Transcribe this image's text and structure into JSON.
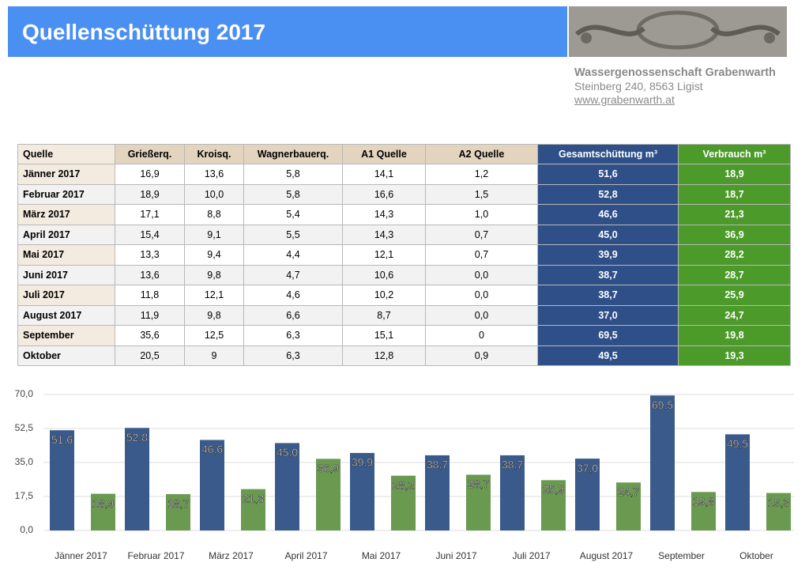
{
  "header": {
    "title": "Quellenschüttung 2017",
    "org": "Wassergenossenschaft Grabenwarth",
    "address": "Steinberg 240, 8563 Ligist",
    "website": "www.grabenwarth.at"
  },
  "table": {
    "columns": [
      "Quelle",
      "Grießerq.",
      "Kroisq.",
      "Wagnerbauerq.",
      "A1 Quelle",
      "A2 Quelle",
      "Gesamtschüttung m³",
      "Verbrauch m³"
    ],
    "rows": [
      [
        "Jänner 2017",
        "16,9",
        "13,6",
        "5,8",
        "14,1",
        "1,2",
        "51,6",
        "18,9"
      ],
      [
        "Februar 2017",
        "18,9",
        "10,0",
        "5,8",
        "16,6",
        "1,5",
        "52,8",
        "18,7"
      ],
      [
        "März 2017",
        "17,1",
        "8,8",
        "5,4",
        "14,3",
        "1,0",
        "46,6",
        "21,3"
      ],
      [
        "April 2017",
        "15,4",
        "9,1",
        "5,5",
        "14,3",
        "0,7",
        "45,0",
        "36,9"
      ],
      [
        "Mai 2017",
        "13,3",
        "9,4",
        "4,4",
        "12,1",
        "0,7",
        "39,9",
        "28,2"
      ],
      [
        "Juni 2017",
        "13,6",
        "9,8",
        "4,7",
        "10,6",
        "0,0",
        "38,7",
        "28,7"
      ],
      [
        "Juli 2017",
        "11,8",
        "12,1",
        "4,6",
        "10,2",
        "0,0",
        "38,7",
        "25,9"
      ],
      [
        "August 2017",
        "11,9",
        "9,8",
        "6,6",
        "8,7",
        "0,0",
        "37,0",
        "24,7"
      ],
      [
        "September",
        "35,6",
        "12,5",
        "6,3",
        "15,1",
        "0",
        "69,5",
        "19,8"
      ],
      [
        "Oktober",
        "20,5",
        "9",
        "6,3",
        "12,8",
        "0,9",
        "49,5",
        "19,3"
      ]
    ]
  },
  "chart_data": {
    "type": "bar",
    "categories": [
      "Jänner 2017",
      "Februar 2017",
      "März 2017",
      "April 2017",
      "Mai 2017",
      "Juni 2017",
      "Juli 2017",
      "August 2017",
      "September",
      "Oktober"
    ],
    "series": [
      {
        "color": "#3a5a8c",
        "values": [
          51.6,
          52.8,
          46.6,
          45.0,
          39.9,
          38.7,
          38.7,
          37.0,
          69.5,
          49.5
        ],
        "value_labels": [
          "51,6",
          "52,8",
          "46,6",
          "45,0",
          "39,9",
          "38,7",
          "38,7",
          "37,0",
          "69,5",
          "49,5"
        ]
      },
      {
        "color": "#6a9a50",
        "values": [
          18.9,
          18.7,
          21.3,
          36.9,
          28.2,
          28.7,
          25.9,
          24.7,
          19.8,
          19.3
        ],
        "value_labels": [
          "18,9",
          "18,7",
          "21,3",
          "36,9",
          "28,2",
          "28,7",
          "25,9",
          "24,7",
          "19,8",
          "19,3"
        ]
      }
    ],
    "ylim": [
      0,
      70
    ],
    "yticks": [
      {
        "value": 0,
        "label": "0,0"
      },
      {
        "value": 17.5,
        "label": "17,5"
      },
      {
        "value": 35,
        "label": "35,0"
      },
      {
        "value": 52.5,
        "label": "52,5"
      },
      {
        "value": 70,
        "label": "70,0"
      }
    ],
    "grid": true
  }
}
